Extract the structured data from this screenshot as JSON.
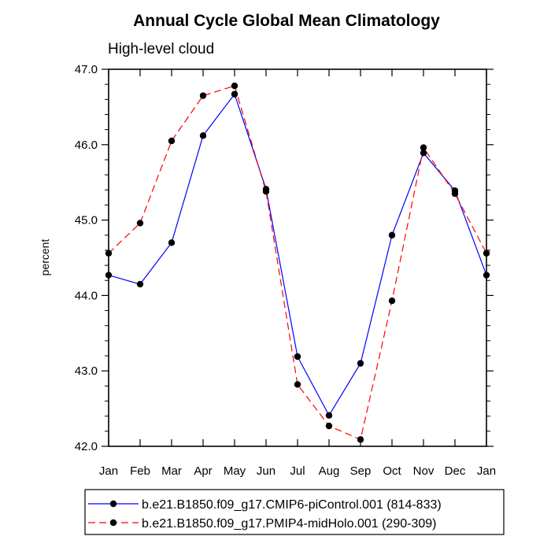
{
  "chart_data": {
    "type": "line",
    "title": "Annual Cycle Global Mean Climatology",
    "subtitle": "High-level cloud",
    "xlabel": "",
    "ylabel": "percent",
    "categories": [
      "Jan",
      "Feb",
      "Mar",
      "Apr",
      "May",
      "Jun",
      "Jul",
      "Aug",
      "Sep",
      "Oct",
      "Nov",
      "Dec",
      "Jan"
    ],
    "ylim": [
      42.0,
      47.0
    ],
    "yticks": [
      42.0,
      43.0,
      44.0,
      45.0,
      46.0,
      47.0
    ],
    "ytick_labels": [
      "42.0",
      "43.0",
      "44.0",
      "45.0",
      "46.0",
      "47.0"
    ],
    "legend_position": "bottom",
    "series": [
      {
        "name": "b.e21.B1850.f09_g17.CMIP6-piControl.001 (814-833)",
        "color": "#0000ff",
        "dash": "solid",
        "values": [
          44.27,
          44.15,
          44.7,
          46.12,
          46.67,
          45.41,
          43.19,
          42.41,
          43.1,
          44.8,
          45.89,
          45.39,
          44.27
        ]
      },
      {
        "name": "b.e21.B1850.f09_g17.PMIP4-midHolo.001 (290-309)",
        "color": "#ff0000",
        "dash": "dashed",
        "values": [
          44.56,
          44.96,
          46.05,
          46.65,
          46.78,
          45.38,
          42.82,
          42.27,
          42.09,
          43.93,
          45.96,
          45.35,
          44.56
        ]
      }
    ]
  }
}
